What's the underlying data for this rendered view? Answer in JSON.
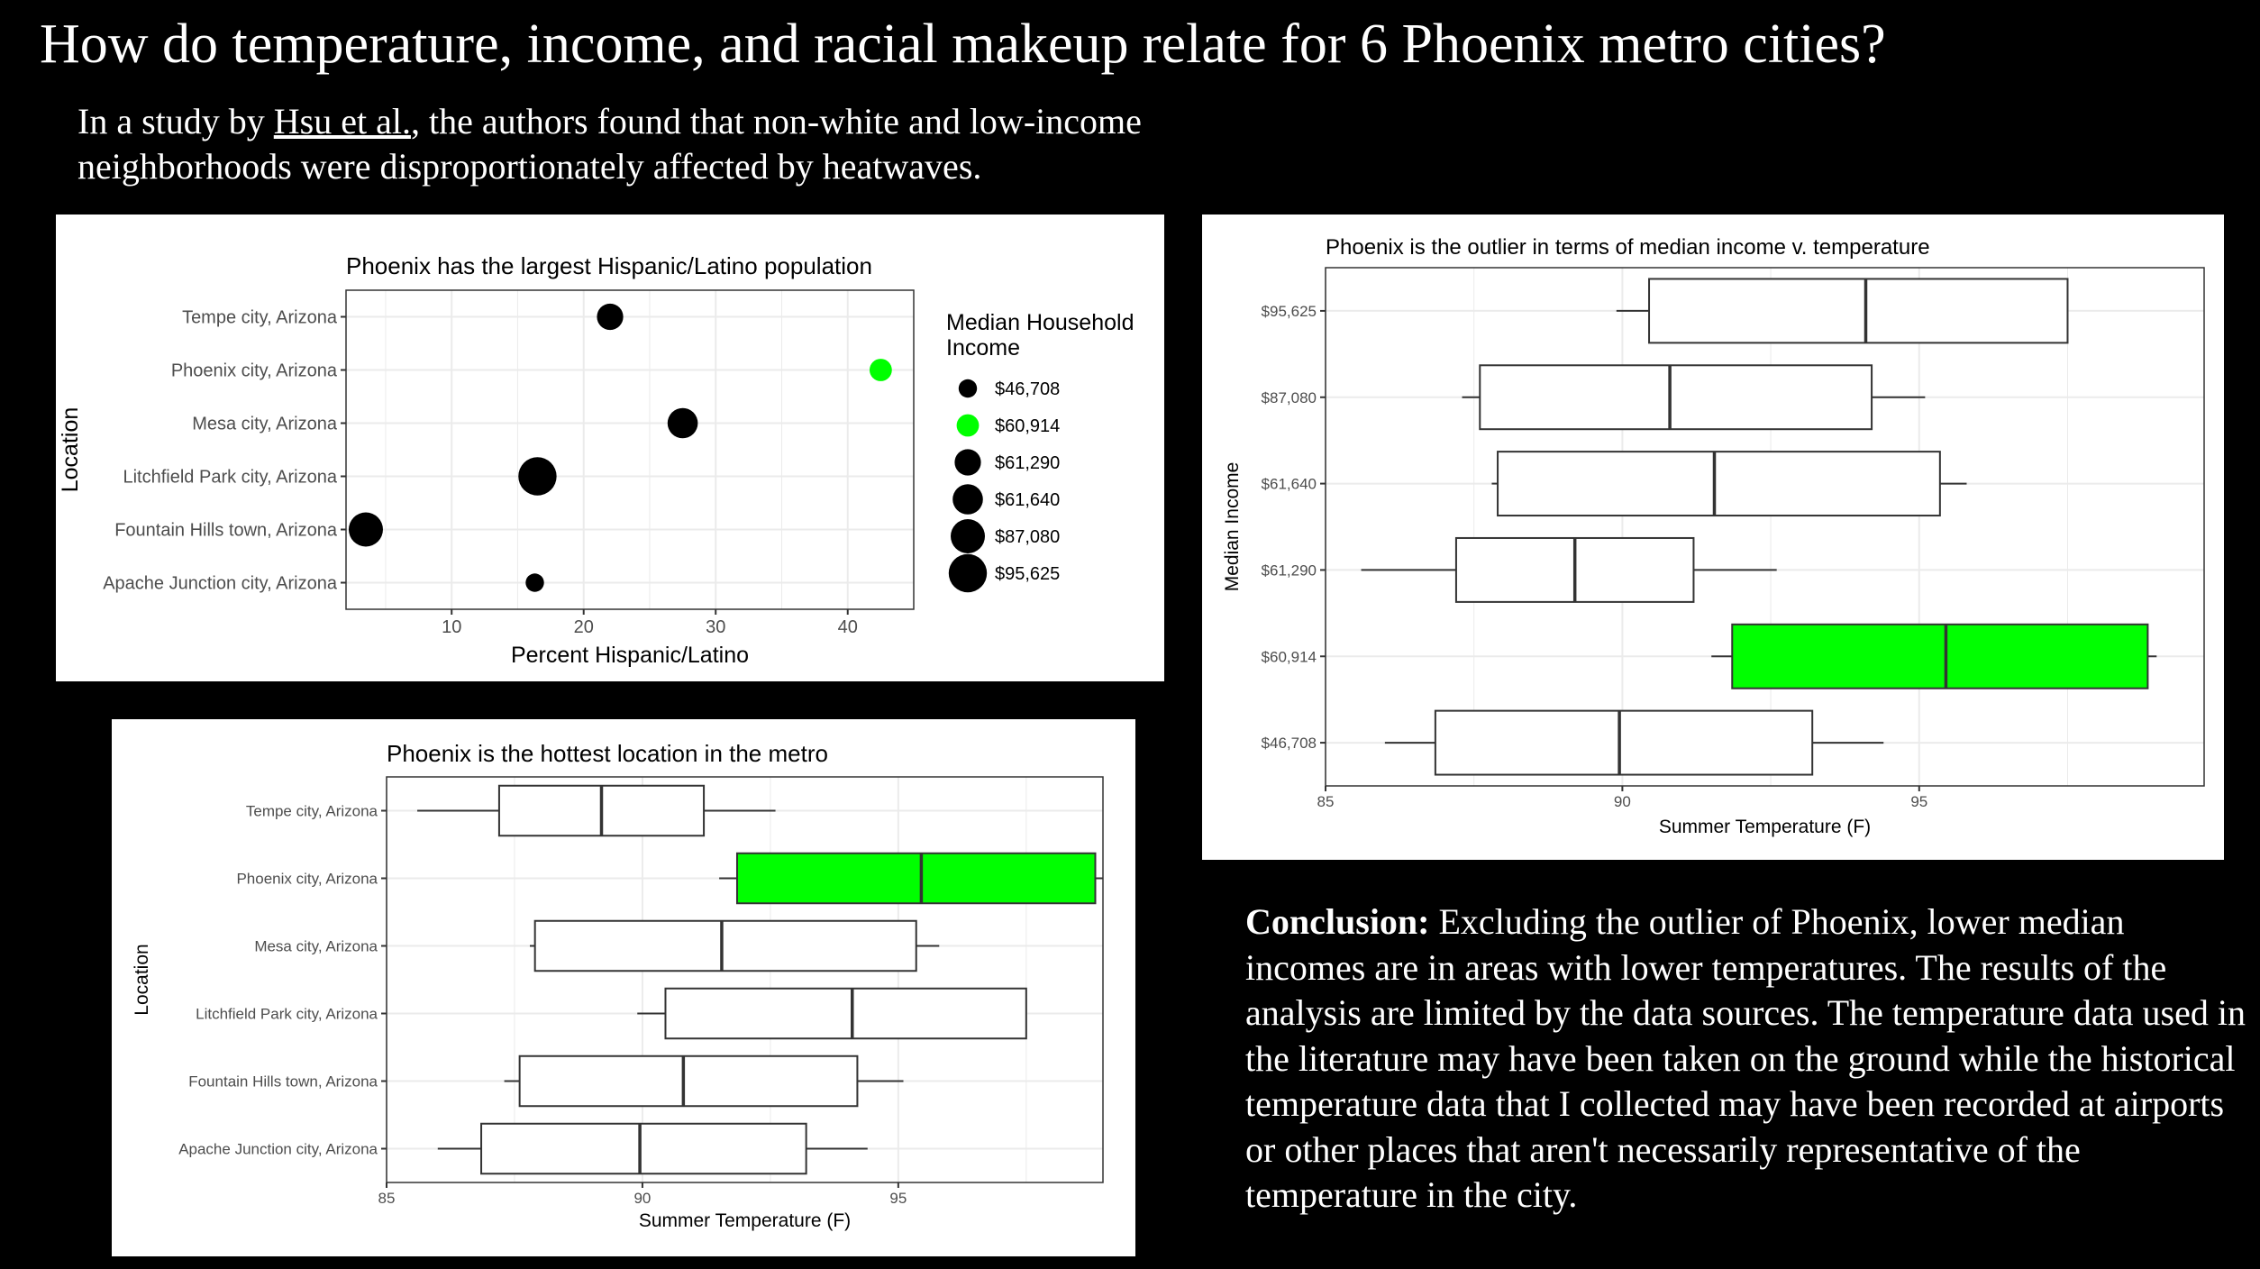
{
  "title": "How do temperature, income, and racial makeup relate for 6 Phoenix metro cities?",
  "intro": {
    "prefix": "In a study by ",
    "link_text": "Hsu et al.",
    "suffix": ", the authors found that non-white and low-income neighborhoods were disproportionately affected by heatwaves."
  },
  "conclusion": {
    "label": "Conclusion:",
    "text": " Excluding the outlier of Phoenix, lower median incomes are in areas with lower temperatures. The results of the analysis are limited by the data sources. The temperature data used in the literature may have been taken on the ground while the historical temperature data that I collected may have been recorded at airports or other places that aren't necessarily representative of the temperature in the city."
  },
  "colors": {
    "highlight": "#00ff00",
    "point": "#000000",
    "box_fill": "#ffffff",
    "panel_bg": "#ebebeb"
  },
  "chart_data": [
    {
      "id": "scatter",
      "type": "scatter",
      "title": "Phoenix has the largest Hispanic/Latino population",
      "xlabel": "Percent Hispanic/Latino",
      "ylabel": "Location",
      "xlim": [
        2,
        45
      ],
      "xticks": [
        10,
        20,
        30,
        40
      ],
      "categories": [
        "Apache Junction city, Arizona",
        "Fountain Hills town, Arizona",
        "Litchfield Park city, Arizona",
        "Mesa city, Arizona",
        "Phoenix city, Arizona",
        "Tempe city, Arizona"
      ],
      "points": [
        {
          "location": "Tempe city, Arizona",
          "x": 22.0,
          "income": "$61,290",
          "size_rank": 3
        },
        {
          "location": "Phoenix city, Arizona",
          "x": 42.5,
          "income": "$60,914",
          "size_rank": 2
        },
        {
          "location": "Mesa city, Arizona",
          "x": 27.5,
          "income": "$61,640",
          "size_rank": 4
        },
        {
          "location": "Litchfield Park city, Arizona",
          "x": 16.5,
          "income": "$95,625",
          "size_rank": 6
        },
        {
          "location": "Fountain Hills town, Arizona",
          "x": 3.5,
          "income": "$87,080",
          "size_rank": 5
        },
        {
          "location": "Apache Junction city, Arizona",
          "x": 16.3,
          "income": "$46,708",
          "size_rank": 1
        }
      ],
      "legend": {
        "title": "Median Household Income",
        "entries": [
          {
            "label": "$46,708",
            "size_rank": 1,
            "highlight": false
          },
          {
            "label": "$60,914",
            "size_rank": 2,
            "highlight": true
          },
          {
            "label": "$61,290",
            "size_rank": 3,
            "highlight": false
          },
          {
            "label": "$61,640",
            "size_rank": 4,
            "highlight": false
          },
          {
            "label": "$87,080",
            "size_rank": 5,
            "highlight": false
          },
          {
            "label": "$95,625",
            "size_rank": 6,
            "highlight": false
          }
        ]
      }
    },
    {
      "id": "box-location",
      "type": "boxplot",
      "title": "Phoenix is the hottest location in the metro",
      "xlabel": "Summer Temperature (F)",
      "ylabel": "Location",
      "xlim": [
        85,
        99
      ],
      "xticks": [
        85,
        90,
        95
      ],
      "categories": [
        "Apache Junction city, Arizona",
        "Fountain Hills town, Arizona",
        "Litchfield Park city, Arizona",
        "Mesa city, Arizona",
        "Phoenix city, Arizona",
        "Tempe city, Arizona"
      ],
      "boxes": [
        {
          "label": "Tempe city, Arizona",
          "min": 85.6,
          "q1": 87.2,
          "median": 89.2,
          "q3": 91.2,
          "max": 92.6,
          "highlight": false
        },
        {
          "label": "Phoenix city, Arizona",
          "min": 91.5,
          "q1": 91.85,
          "median": 95.45,
          "q3": 98.85,
          "max": 99.0,
          "highlight": true
        },
        {
          "label": "Mesa city, Arizona",
          "min": 87.8,
          "q1": 87.9,
          "median": 91.55,
          "q3": 95.35,
          "max": 95.8,
          "highlight": false
        },
        {
          "label": "Litchfield Park city, Arizona",
          "min": 89.9,
          "q1": 90.45,
          "median": 94.1,
          "q3": 97.5,
          "max": 97.5,
          "highlight": false
        },
        {
          "label": "Fountain Hills town, Arizona",
          "min": 87.3,
          "q1": 87.6,
          "median": 90.8,
          "q3": 94.2,
          "max": 95.1,
          "highlight": false
        },
        {
          "label": "Apache Junction city, Arizona",
          "min": 86.0,
          "q1": 86.85,
          "median": 89.95,
          "q3": 93.2,
          "max": 94.4,
          "highlight": false
        }
      ]
    },
    {
      "id": "box-income",
      "type": "boxplot",
      "title": "Phoenix is the outlier in terms of median income v. temperature",
      "xlabel": "Summer Temperature (F)",
      "ylabel": "Median Income",
      "xlim": [
        85,
        99.8
      ],
      "xticks": [
        85,
        90,
        95
      ],
      "categories": [
        "$46,708",
        "$60,914",
        "$61,290",
        "$61,640",
        "$87,080",
        "$95,625"
      ],
      "boxes": [
        {
          "label": "$95,625",
          "min": 89.9,
          "q1": 90.45,
          "median": 94.1,
          "q3": 97.5,
          "max": 97.5,
          "highlight": false
        },
        {
          "label": "$87,080",
          "min": 87.3,
          "q1": 87.6,
          "median": 90.8,
          "q3": 94.2,
          "max": 95.1,
          "highlight": false
        },
        {
          "label": "$61,640",
          "min": 87.8,
          "q1": 87.9,
          "median": 91.55,
          "q3": 95.35,
          "max": 95.8,
          "highlight": false
        },
        {
          "label": "$61,290",
          "min": 85.6,
          "q1": 87.2,
          "median": 89.2,
          "q3": 91.2,
          "max": 92.6,
          "highlight": false
        },
        {
          "label": "$60,914",
          "min": 91.5,
          "q1": 91.85,
          "median": 95.45,
          "q3": 98.85,
          "max": 99.0,
          "highlight": true
        },
        {
          "label": "$46,708",
          "min": 86.0,
          "q1": 86.85,
          "median": 89.95,
          "q3": 93.2,
          "max": 94.4,
          "highlight": false
        }
      ]
    }
  ]
}
